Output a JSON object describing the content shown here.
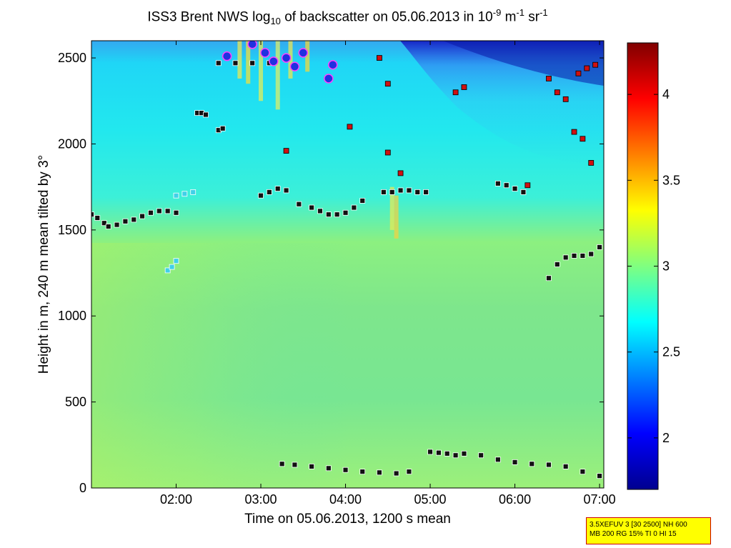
{
  "chart_data": {
    "type": "heatmap",
    "title": "ISS3 Brent NWS log",
    "title_sub": "10",
    "title_mid": " of backscatter on 05.06.2013 in 10",
    "title_sup1": "-9",
    "title_unit1": " m",
    "title_sup2": "-1",
    "title_unit2": " sr",
    "title_sup3": "-1",
    "xlabel": "Time on 05.06.2013, 1200 s mean",
    "ylabel": "Height in m, 240 m mean tilted by 3°",
    "xlim_hours": [
      1.0,
      7.05
    ],
    "ylim": [
      0,
      2600
    ],
    "x_ticks": [
      {
        "label": "02:00",
        "hour": 2
      },
      {
        "label": "03:00",
        "hour": 3
      },
      {
        "label": "04:00",
        "hour": 4
      },
      {
        "label": "05:00",
        "hour": 5
      },
      {
        "label": "06:00",
        "hour": 6
      },
      {
        "label": "07:00",
        "hour": 7
      }
    ],
    "y_ticks": [
      0,
      500,
      1000,
      1500,
      2000,
      2500
    ],
    "colorbar": {
      "range": [
        1.7,
        4.3
      ],
      "ticks": [
        2,
        2.5,
        3,
        3.5,
        4
      ],
      "colormap": "jet"
    },
    "markers": {
      "lowest_layer_heights": [
        {
          "x_hours": [
            2.5,
            2.7,
            2.9,
            3.1
          ],
          "y": [
            2470,
            2470,
            2470,
            2470
          ],
          "style": "black"
        },
        {
          "x_hours": [
            1.0,
            1.07,
            1.15,
            1.2,
            1.3,
            1.4,
            1.5,
            1.6,
            1.7,
            1.8,
            1.9,
            2.0
          ],
          "y": [
            1590,
            1570,
            1540,
            1520,
            1530,
            1550,
            1560,
            1580,
            1600,
            1610,
            1610,
            1600
          ],
          "style": "black"
        },
        {
          "x_hours": [
            1.9,
            1.95,
            2.0
          ],
          "y": [
            1265,
            1285,
            1320
          ],
          "style": "cyan"
        },
        {
          "x_hours": [
            2.0,
            2.1,
            2.2
          ],
          "y": [
            1700,
            1710,
            1720
          ],
          "style": "cyan"
        },
        {
          "x_hours": [
            2.25,
            2.3,
            2.35
          ],
          "y": [
            2180,
            2180,
            2170
          ],
          "style": "black"
        },
        {
          "x_hours": [
            2.5,
            2.55
          ],
          "y": [
            2080,
            2090
          ],
          "style": "black"
        },
        {
          "x_hours": [
            3.0,
            3.1,
            3.2,
            3.3
          ],
          "y": [
            1700,
            1720,
            1740,
            1730
          ],
          "style": "black"
        },
        {
          "x_hours": [
            3.45,
            3.6,
            3.7,
            3.8,
            3.9,
            4.0,
            4.1,
            4.2
          ],
          "y": [
            1650,
            1630,
            1610,
            1590,
            1590,
            1600,
            1630,
            1670
          ],
          "style": "black"
        },
        {
          "x_hours": [
            4.45,
            4.55,
            4.65,
            4.75,
            4.85,
            4.95
          ],
          "y": [
            1720,
            1720,
            1730,
            1730,
            1720,
            1720
          ],
          "style": "black"
        },
        {
          "x_hours": [
            5.8,
            5.9,
            6.0,
            6.1
          ],
          "y": [
            1770,
            1760,
            1740,
            1720
          ],
          "style": "black"
        },
        {
          "x_hours": [
            6.4,
            6.5,
            6.6,
            6.7,
            6.8,
            6.9,
            7.0
          ],
          "y": [
            1220,
            1300,
            1340,
            1350,
            1350,
            1360,
            1400
          ],
          "style": "black"
        },
        {
          "x_hours": [
            3.25,
            3.4,
            3.6,
            3.8,
            4.0,
            4.2,
            4.4,
            4.6,
            4.75
          ],
          "y": [
            140,
            135,
            125,
            115,
            105,
            95,
            90,
            85,
            95
          ],
          "style": "black"
        },
        {
          "x_hours": [
            5.0,
            5.1,
            5.2,
            5.3,
            5.4,
            5.6,
            5.8,
            6.0,
            6.2,
            6.4,
            6.6,
            6.8,
            7.0
          ],
          "y": [
            210,
            205,
            200,
            190,
            200,
            190,
            165,
            150,
            140,
            135,
            125,
            95,
            70
          ],
          "style": "black"
        }
      ],
      "upper_layer_points": [
        {
          "x_hours": 2.6,
          "y": 2510
        },
        {
          "x_hours": 2.9,
          "y": 2580
        },
        {
          "x_hours": 3.05,
          "y": 2530
        },
        {
          "x_hours": 3.15,
          "y": 2480
        },
        {
          "x_hours": 3.3,
          "y": 2500
        },
        {
          "x_hours": 3.4,
          "y": 2450
        },
        {
          "x_hours": 3.5,
          "y": 2530
        },
        {
          "x_hours": 3.85,
          "y": 2460
        },
        {
          "x_hours": 3.8,
          "y": 2380
        },
        {
          "x_hours": 4.05,
          "y": 2100
        },
        {
          "x_hours": 4.4,
          "y": 2500
        },
        {
          "x_hours": 4.5,
          "y": 2350
        },
        {
          "x_hours": 3.3,
          "y": 1960
        },
        {
          "x_hours": 4.5,
          "y": 1950
        },
        {
          "x_hours": 4.65,
          "y": 1830
        },
        {
          "x_hours": 5.3,
          "y": 2300
        },
        {
          "x_hours": 5.4,
          "y": 2330
        },
        {
          "x_hours": 6.4,
          "y": 2380
        },
        {
          "x_hours": 6.5,
          "y": 2300
        },
        {
          "x_hours": 6.6,
          "y": 2260
        },
        {
          "x_hours": 6.75,
          "y": 2410
        },
        {
          "x_hours": 6.85,
          "y": 2440
        },
        {
          "x_hours": 6.95,
          "y": 2460
        },
        {
          "x_hours": 6.7,
          "y": 2070
        },
        {
          "x_hours": 6.8,
          "y": 2030
        },
        {
          "x_hours": 6.9,
          "y": 1890
        },
        {
          "x_hours": 6.15,
          "y": 1760
        }
      ]
    }
  },
  "info_box": {
    "line1": "3.5XEFUV 3 [30 2500] NH 600",
    "line2": "MB 200 RG 15% TI 0 HI 15"
  }
}
